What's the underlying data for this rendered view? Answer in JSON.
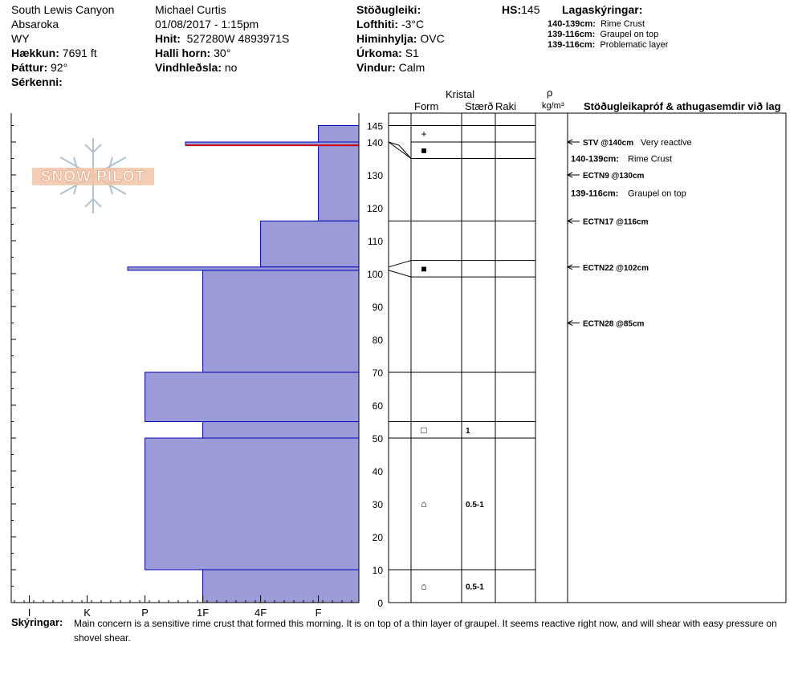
{
  "header": {
    "location": "South Lewis Canyon",
    "range": "Absaroka",
    "state": "WY",
    "elevation_label": "Hækkun:",
    "elevation": "7691 ft",
    "aspect_label": "Þáttur:",
    "aspect": "92°",
    "features_label": "Sérkenni:",
    "observer": "Michael Curtis",
    "datetime": "01/08/2017 - 1:15pm",
    "coords_label": "Hnit:",
    "coords": "527280W 4893971S",
    "slope_label": "Halli horn:",
    "slope": "30°",
    "wind_loading_label": "Vindhleðsla:",
    "wind_loading": "no",
    "stability_label": "Stöðugleiki:",
    "stability": "",
    "air_temp_label": "Lofthiti:",
    "air_temp": "-3°C",
    "sky_label": "Himinhylja:",
    "sky": "OVC",
    "precip_label": "Úrkoma:",
    "precip": "S1",
    "wind_label": "Vindur:",
    "wind": "Calm",
    "hs_label": "HS:",
    "hs": "145",
    "legend_title": "Lagaskýringar:",
    "layer_notes": [
      {
        "range": "140-139cm:",
        "text": "Rime Crust"
      },
      {
        "range": "139-116cm:",
        "text": "Graupel on top"
      },
      {
        "range": "139-116cm:",
        "text": "Problematic layer"
      }
    ]
  },
  "logo_text": "SNOW PILOT",
  "columns": {
    "crystal": "Kristal",
    "form": "Form",
    "size": "Stærð",
    "moisture": "Raki",
    "density_symbol": "ρ",
    "density_unit": "kg/m³",
    "tests": "Stöðugleikapróf & athugasemdir við lag"
  },
  "colors": {
    "bar": "#9b9bd7",
    "bar_edge": "#0000b4",
    "problem": "#cc0000"
  },
  "chart_data": {
    "type": "bar",
    "ylim": [
      0,
      150
    ],
    "y_ticks": [
      0,
      10,
      20,
      30,
      40,
      50,
      60,
      70,
      80,
      90,
      100,
      110,
      120,
      130,
      140,
      145
    ],
    "hardness_ticks": [
      "I",
      "K",
      "P",
      "1F",
      "4F",
      "F"
    ],
    "layers": [
      {
        "top": 145,
        "bottom": 140,
        "hardness": 0.7
      },
      {
        "top": 140,
        "bottom": 139,
        "hardness": 3.0
      },
      {
        "top": 139,
        "bottom": 116,
        "hardness": 0.7
      },
      {
        "top": 116,
        "bottom": 102,
        "hardness": 1.7
      },
      {
        "top": 102,
        "bottom": 101,
        "hardness": 4.0
      },
      {
        "top": 101,
        "bottom": 70,
        "hardness": 2.7
      },
      {
        "top": 70,
        "bottom": 55,
        "hardness": 3.7
      },
      {
        "top": 55,
        "bottom": 50,
        "hardness": 2.7
      },
      {
        "top": 50,
        "bottom": 10,
        "hardness": 3.7
      },
      {
        "top": 10,
        "bottom": 0,
        "hardness": 2.7
      }
    ],
    "problem_layer": {
      "height": 139
    },
    "layer_rows": [
      {
        "top": 145,
        "bottom": 140,
        "symbol": "+",
        "size": ""
      },
      {
        "top": 140,
        "bottom": 135,
        "symbol": "■",
        "size": ""
      },
      {
        "top": 135,
        "bottom": 116,
        "symbol": "",
        "size": ""
      },
      {
        "top": 116,
        "bottom": 104,
        "symbol": "",
        "size": ""
      },
      {
        "top": 104,
        "bottom": 99,
        "symbol": "■",
        "size": ""
      },
      {
        "top": 99,
        "bottom": 70,
        "symbol": "",
        "size": ""
      },
      {
        "top": 70,
        "bottom": 55,
        "symbol": "",
        "size": ""
      },
      {
        "top": 55,
        "bottom": 50,
        "symbol": "□",
        "size": "1"
      },
      {
        "top": 50,
        "bottom": 10,
        "symbol": "⌂",
        "size": "0.5-1"
      },
      {
        "top": 10,
        "bottom": 0,
        "symbol": "⌂",
        "size": "0.5-1"
      }
    ],
    "tests": [
      {
        "height": 140,
        "label": "STV @140cm",
        "note": "Very reactive"
      },
      {
        "height": 130,
        "label": "ECTN9 @130cm",
        "note": ""
      },
      {
        "height": 116,
        "label": "ECTN17 @116cm",
        "note": ""
      },
      {
        "height": 102,
        "label": "ECTN22 @102cm",
        "note": ""
      },
      {
        "height": 85,
        "label": "ECTN28 @85cm",
        "note": ""
      }
    ],
    "comments": [
      {
        "height": 135,
        "range": "140-139cm:",
        "text": "Rime Crust"
      },
      {
        "height": 124.5,
        "range": "139-116cm:",
        "text": "Graupel on top"
      }
    ]
  },
  "footer": {
    "label": "Skýringar:",
    "text_line1": "Main concern is a sensitive rime crust that formed this morning. It is on top of a thin layer of graupel.   It seems reactive right now, and will shear with easy pressure on",
    "text_line2": "shovel shear."
  }
}
